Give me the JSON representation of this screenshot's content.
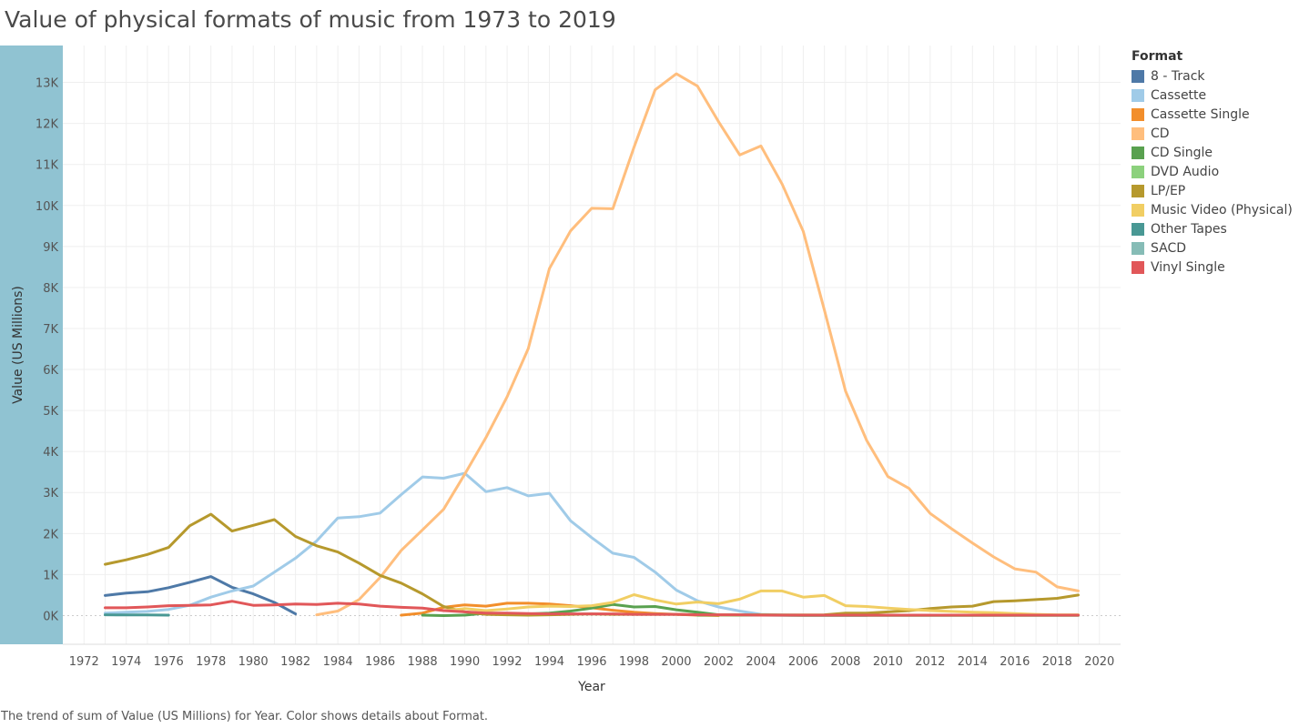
{
  "title": "Value of physical formats of music from 1973 to 2019",
  "caption": "The trend of sum of Value (US Millions) for Year.  Color shows details about Format.",
  "chart_data": {
    "type": "line",
    "xlabel": "Year",
    "ylabel": "Value (US Millions)",
    "xlim": [
      1971,
      2021
    ],
    "ylim": [
      -700,
      13900
    ],
    "x_ticks": [
      "1972",
      "1974",
      "1976",
      "1978",
      "1980",
      "1982",
      "1984",
      "1986",
      "1988",
      "1990",
      "1992",
      "1994",
      "1996",
      "1998",
      "2000",
      "2002",
      "2004",
      "2006",
      "2008",
      "2010",
      "2012",
      "2014",
      "2016",
      "2018",
      "2020"
    ],
    "x_tick_values": [
      1972,
      1974,
      1976,
      1978,
      1980,
      1982,
      1984,
      1986,
      1988,
      1990,
      1992,
      1994,
      1996,
      1998,
      2000,
      2002,
      2004,
      2006,
      2008,
      2010,
      2012,
      2014,
      2016,
      2018,
      2020
    ],
    "y_ticks": [
      "0K",
      "1K",
      "2K",
      "3K",
      "4K",
      "5K",
      "6K",
      "7K",
      "8K",
      "9K",
      "10K",
      "11K",
      "12K",
      "13K"
    ],
    "y_tick_values": [
      0,
      1000,
      2000,
      3000,
      4000,
      5000,
      6000,
      7000,
      8000,
      9000,
      10000,
      11000,
      12000,
      13000
    ],
    "grid": true,
    "legend_title": "Format",
    "legend_position": "right",
    "series": [
      {
        "name": "8 - Track",
        "color": "#4e79a7",
        "x": [
          1973,
          1974,
          1975,
          1976,
          1977,
          1978,
          1979,
          1980,
          1981,
          1982
        ],
        "values": [
          490,
          550,
          580,
          680,
          810,
          950,
          690,
          530,
          320,
          40
        ]
      },
      {
        "name": "Cassette",
        "color": "#a0cbe8",
        "x": [
          1973,
          1974,
          1975,
          1976,
          1977,
          1978,
          1979,
          1980,
          1981,
          1982,
          1983,
          1984,
          1985,
          1986,
          1987,
          1988,
          1989,
          1990,
          1991,
          1992,
          1993,
          1994,
          1995,
          1996,
          1997,
          1998,
          1999,
          2000,
          2001,
          2002,
          2003,
          2004,
          2005,
          2006,
          2007,
          2008,
          2009
        ],
        "values": [
          60,
          80,
          100,
          150,
          250,
          450,
          600,
          720,
          1060,
          1400,
          1820,
          2380,
          2410,
          2500,
          2950,
          3380,
          3350,
          3470,
          3020,
          3120,
          2920,
          2980,
          2310,
          1900,
          1520,
          1420,
          1060,
          620,
          360,
          210,
          110,
          30,
          15,
          10,
          5,
          5,
          5
        ]
      },
      {
        "name": "Cassette Single",
        "color": "#f28e2b",
        "x": [
          1987,
          1988,
          1989,
          1990,
          1991,
          1992,
          1993,
          1994,
          1995,
          1996,
          1997,
          1998,
          1999,
          2000,
          2001,
          2002
        ],
        "values": [
          10,
          60,
          200,
          260,
          230,
          300,
          300,
          280,
          240,
          190,
          130,
          80,
          50,
          30,
          10,
          0
        ]
      },
      {
        "name": "CD",
        "color": "#ffbe7d",
        "x": [
          1983,
          1984,
          1985,
          1986,
          1987,
          1988,
          1989,
          1990,
          1991,
          1992,
          1993,
          1994,
          1995,
          1996,
          1997,
          1998,
          1999,
          2000,
          2001,
          2002,
          2003,
          2004,
          2005,
          2006,
          2007,
          2008,
          2009,
          2010,
          2011,
          2012,
          2013,
          2014,
          2015,
          2016,
          2017,
          2018,
          2019
        ],
        "values": [
          20,
          110,
          390,
          930,
          1590,
          2090,
          2590,
          3450,
          4340,
          5330,
          6510,
          8460,
          9380,
          9930,
          9920,
          11420,
          12820,
          13210,
          12910,
          12040,
          11230,
          11450,
          10520,
          9370,
          7450,
          5470,
          4270,
          3390,
          3100,
          2490,
          2120,
          1770,
          1430,
          1140,
          1060,
          700,
          600
        ]
      },
      {
        "name": "CD Single",
        "color": "#59a14f",
        "x": [
          1988,
          1989,
          1990,
          1991,
          1992,
          1993,
          1994,
          1995,
          1996,
          1997,
          1998,
          1999,
          2000,
          2001,
          2002,
          2003,
          2004,
          2005,
          2006,
          2007,
          2008,
          2009,
          2010,
          2011,
          2012,
          2013,
          2014,
          2015,
          2016,
          2017,
          2018,
          2019
        ],
        "values": [
          10,
          0,
          10,
          60,
          50,
          40,
          60,
          110,
          180,
          270,
          210,
          220,
          140,
          80,
          20,
          20,
          10,
          10,
          5,
          5,
          5,
          5,
          5,
          5,
          5,
          5,
          5,
          5,
          5,
          5,
          5,
          5
        ]
      },
      {
        "name": "DVD Audio",
        "color": "#8cd17d",
        "x": [
          2001,
          2002,
          2003,
          2004,
          2005,
          2006,
          2007,
          2008,
          2009
        ],
        "values": [
          5,
          10,
          8,
          10,
          10,
          5,
          3,
          2,
          1
        ]
      },
      {
        "name": "LP/EP",
        "color": "#b6992d",
        "x": [
          1973,
          1974,
          1975,
          1976,
          1977,
          1978,
          1979,
          1980,
          1981,
          1982,
          1983,
          1984,
          1985,
          1986,
          1987,
          1988,
          1989,
          1990,
          1991,
          1992,
          1993,
          1994,
          1995,
          1996,
          1997,
          1998,
          1999,
          2000,
          2001,
          2002,
          2003,
          2004,
          2005,
          2006,
          2007,
          2008,
          2009,
          2010,
          2011,
          2012,
          2013,
          2014,
          2015,
          2016,
          2017,
          2018,
          2019
        ],
        "values": [
          1250,
          1360,
          1490,
          1660,
          2190,
          2470,
          2060,
          2200,
          2340,
          1930,
          1700,
          1550,
          1280,
          980,
          790,
          530,
          220,
          90,
          30,
          20,
          10,
          20,
          30,
          40,
          30,
          30,
          30,
          30,
          20,
          20,
          20,
          20,
          15,
          15,
          20,
          60,
          60,
          90,
          120,
          170,
          210,
          230,
          340,
          360,
          390,
          420,
          500
        ]
      },
      {
        "name": "Music Video (Physical)",
        "color": "#f1ce63",
        "x": [
          1989,
          1990,
          1991,
          1992,
          1993,
          1994,
          1995,
          1996,
          1997,
          1998,
          1999,
          2000,
          2001,
          2002,
          2003,
          2004,
          2005,
          2006,
          2007,
          2008,
          2009,
          2010,
          2011,
          2012,
          2013,
          2014,
          2015,
          2016,
          2017,
          2018,
          2019
        ],
        "values": [
          120,
          170,
          120,
          160,
          210,
          230,
          220,
          240,
          320,
          510,
          380,
          280,
          330,
          290,
          400,
          600,
          600,
          450,
          490,
          240,
          220,
          180,
          150,
          120,
          100,
          80,
          70,
          50,
          30,
          20,
          20
        ]
      },
      {
        "name": "Other Tapes",
        "color": "#499894",
        "x": [
          1973,
          1974,
          1975,
          1976
        ],
        "values": [
          20,
          15,
          15,
          10
        ]
      },
      {
        "name": "SACD",
        "color": "#86bcb6",
        "x": [
          2003,
          2004,
          2005,
          2006,
          2007,
          2008,
          2009
        ],
        "values": [
          20,
          10,
          5,
          5,
          5,
          5,
          5
        ]
      },
      {
        "name": "Vinyl Single",
        "color": "#e15759",
        "x": [
          1973,
          1974,
          1975,
          1976,
          1977,
          1978,
          1979,
          1980,
          1981,
          1982,
          1983,
          1984,
          1985,
          1986,
          1987,
          1988,
          1989,
          1990,
          1991,
          1992,
          1993,
          1994,
          1995,
          1996,
          1997,
          1998,
          1999,
          2000,
          2001,
          2002,
          2003,
          2004,
          2005,
          2006,
          2007,
          2008,
          2009,
          2010,
          2011,
          2012,
          2013,
          2014,
          2015,
          2016,
          2017,
          2018,
          2019
        ],
        "values": [
          190,
          190,
          210,
          240,
          250,
          260,
          350,
          250,
          260,
          280,
          270,
          300,
          280,
          230,
          200,
          180,
          120,
          90,
          60,
          60,
          50,
          40,
          40,
          40,
          40,
          30,
          30,
          30,
          20,
          20,
          20,
          10,
          10,
          10,
          10,
          10,
          10,
          10,
          10,
          10,
          10,
          10,
          10,
          10,
          10,
          10,
          10
        ]
      }
    ]
  }
}
